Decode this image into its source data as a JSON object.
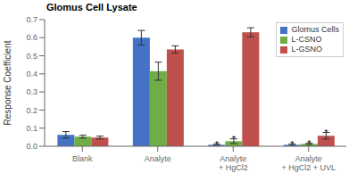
{
  "chart_data": {
    "type": "bar",
    "title": "Glomus Cell Lysate",
    "ylabel": "Response Coefficient",
    "categories": [
      "Blank",
      "Analyte",
      "Analyte\n+ HgCl2",
      "Analyte\n+ HgCl2 + UVL"
    ],
    "series": [
      {
        "name": "Glomus Cells",
        "color": "#4472C4",
        "values": [
          0.063,
          0.6,
          0.008,
          0.008
        ],
        "errors": [
          0.018,
          0.04,
          0.004,
          0.004
        ]
      },
      {
        "name": "L-CSNO",
        "color": "#70AD47",
        "values": [
          0.053,
          0.415,
          0.028,
          0.013
        ],
        "errors": [
          0.008,
          0.05,
          0.013,
          0.004
        ]
      },
      {
        "name": "L-GSNO",
        "color": "#C0504D",
        "values": [
          0.048,
          0.535,
          0.63,
          0.058
        ],
        "errors": [
          0.008,
          0.02,
          0.025,
          0.018
        ]
      }
    ],
    "ylim": [
      0,
      0.7
    ],
    "yticks": [
      {
        "value": 0.0,
        "label": "0.0"
      },
      0.1,
      0.2,
      0.3,
      0.4,
      0.5,
      0.6,
      0.7
    ],
    "legend": "upper right",
    "grid": false,
    "annotations": [
      {
        "text": "*",
        "category": "Analyte\n+ HgCl2",
        "series": "Glomus Cells"
      },
      {
        "text": "*",
        "category": "Analyte\n+ HgCl2",
        "series": "L-CSNO"
      },
      {
        "text": "*",
        "category": "Analyte\n+ HgCl2 + UVL",
        "series": "Glomus Cells"
      },
      {
        "text": "*",
        "category": "Analyte\n+ HgCl2 + UVL",
        "series": "L-CSNO"
      },
      {
        "text": "*",
        "category": "Analyte\n+ HgCl2 + UVL",
        "series": "L-GSNO"
      }
    ]
  }
}
